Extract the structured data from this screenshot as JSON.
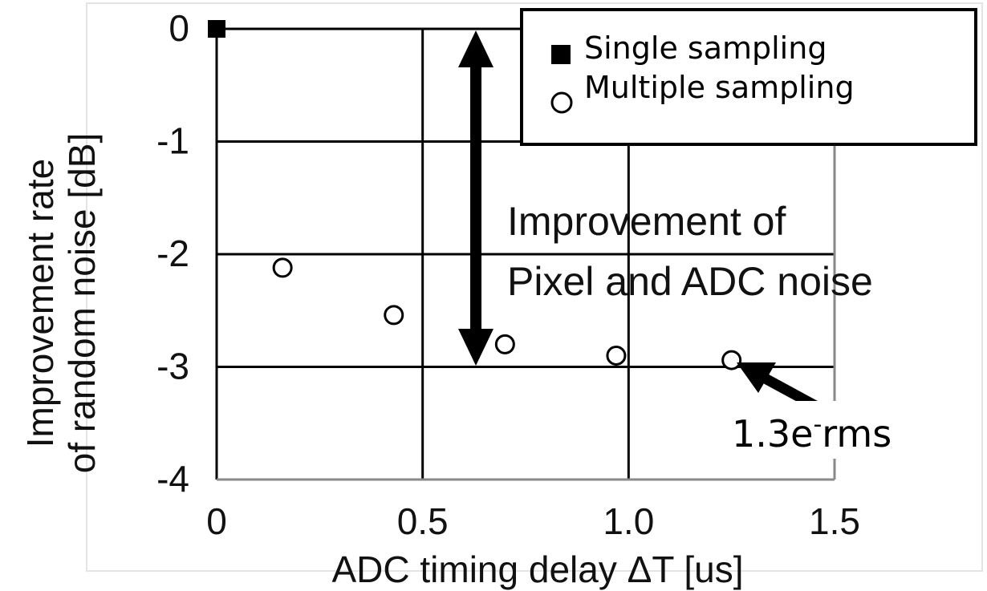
{
  "chart_data": {
    "type": "scatter",
    "xlabel": "ADC timing delay ΔT [us]",
    "ylabel_lines": [
      "Improvement rate",
      "of random noise [dB]"
    ],
    "xlim": [
      0,
      1.5
    ],
    "ylim": [
      -4,
      0
    ],
    "x_ticks": [
      0,
      0.5,
      1.0,
      1.5
    ],
    "x_tick_labels": [
      "0",
      "0.5",
      "1.0",
      "1.5"
    ],
    "y_ticks": [
      0,
      -1,
      -2,
      -3,
      -4
    ],
    "y_tick_labels": [
      "0",
      "-1",
      "-2",
      "-3",
      "-4"
    ],
    "grid": true,
    "legend_position": "top-right",
    "series": [
      {
        "name": "Single sampling",
        "marker": "filled-square",
        "x": [
          0
        ],
        "y": [
          0
        ]
      },
      {
        "name": "Multiple sampling",
        "marker": "open-circle",
        "x": [
          0.16,
          0.43,
          0.7,
          0.97,
          1.25
        ],
        "y": [
          -2.12,
          -2.54,
          -2.8,
          -2.9,
          -2.94
        ]
      }
    ],
    "annotations": [
      {
        "name": "improvement",
        "lines": [
          "Improvement of",
          "Pixel and ADC noise"
        ]
      },
      {
        "name": "rms",
        "main": "1.3e",
        "superscript": "-",
        "suffix": "rms"
      }
    ]
  }
}
